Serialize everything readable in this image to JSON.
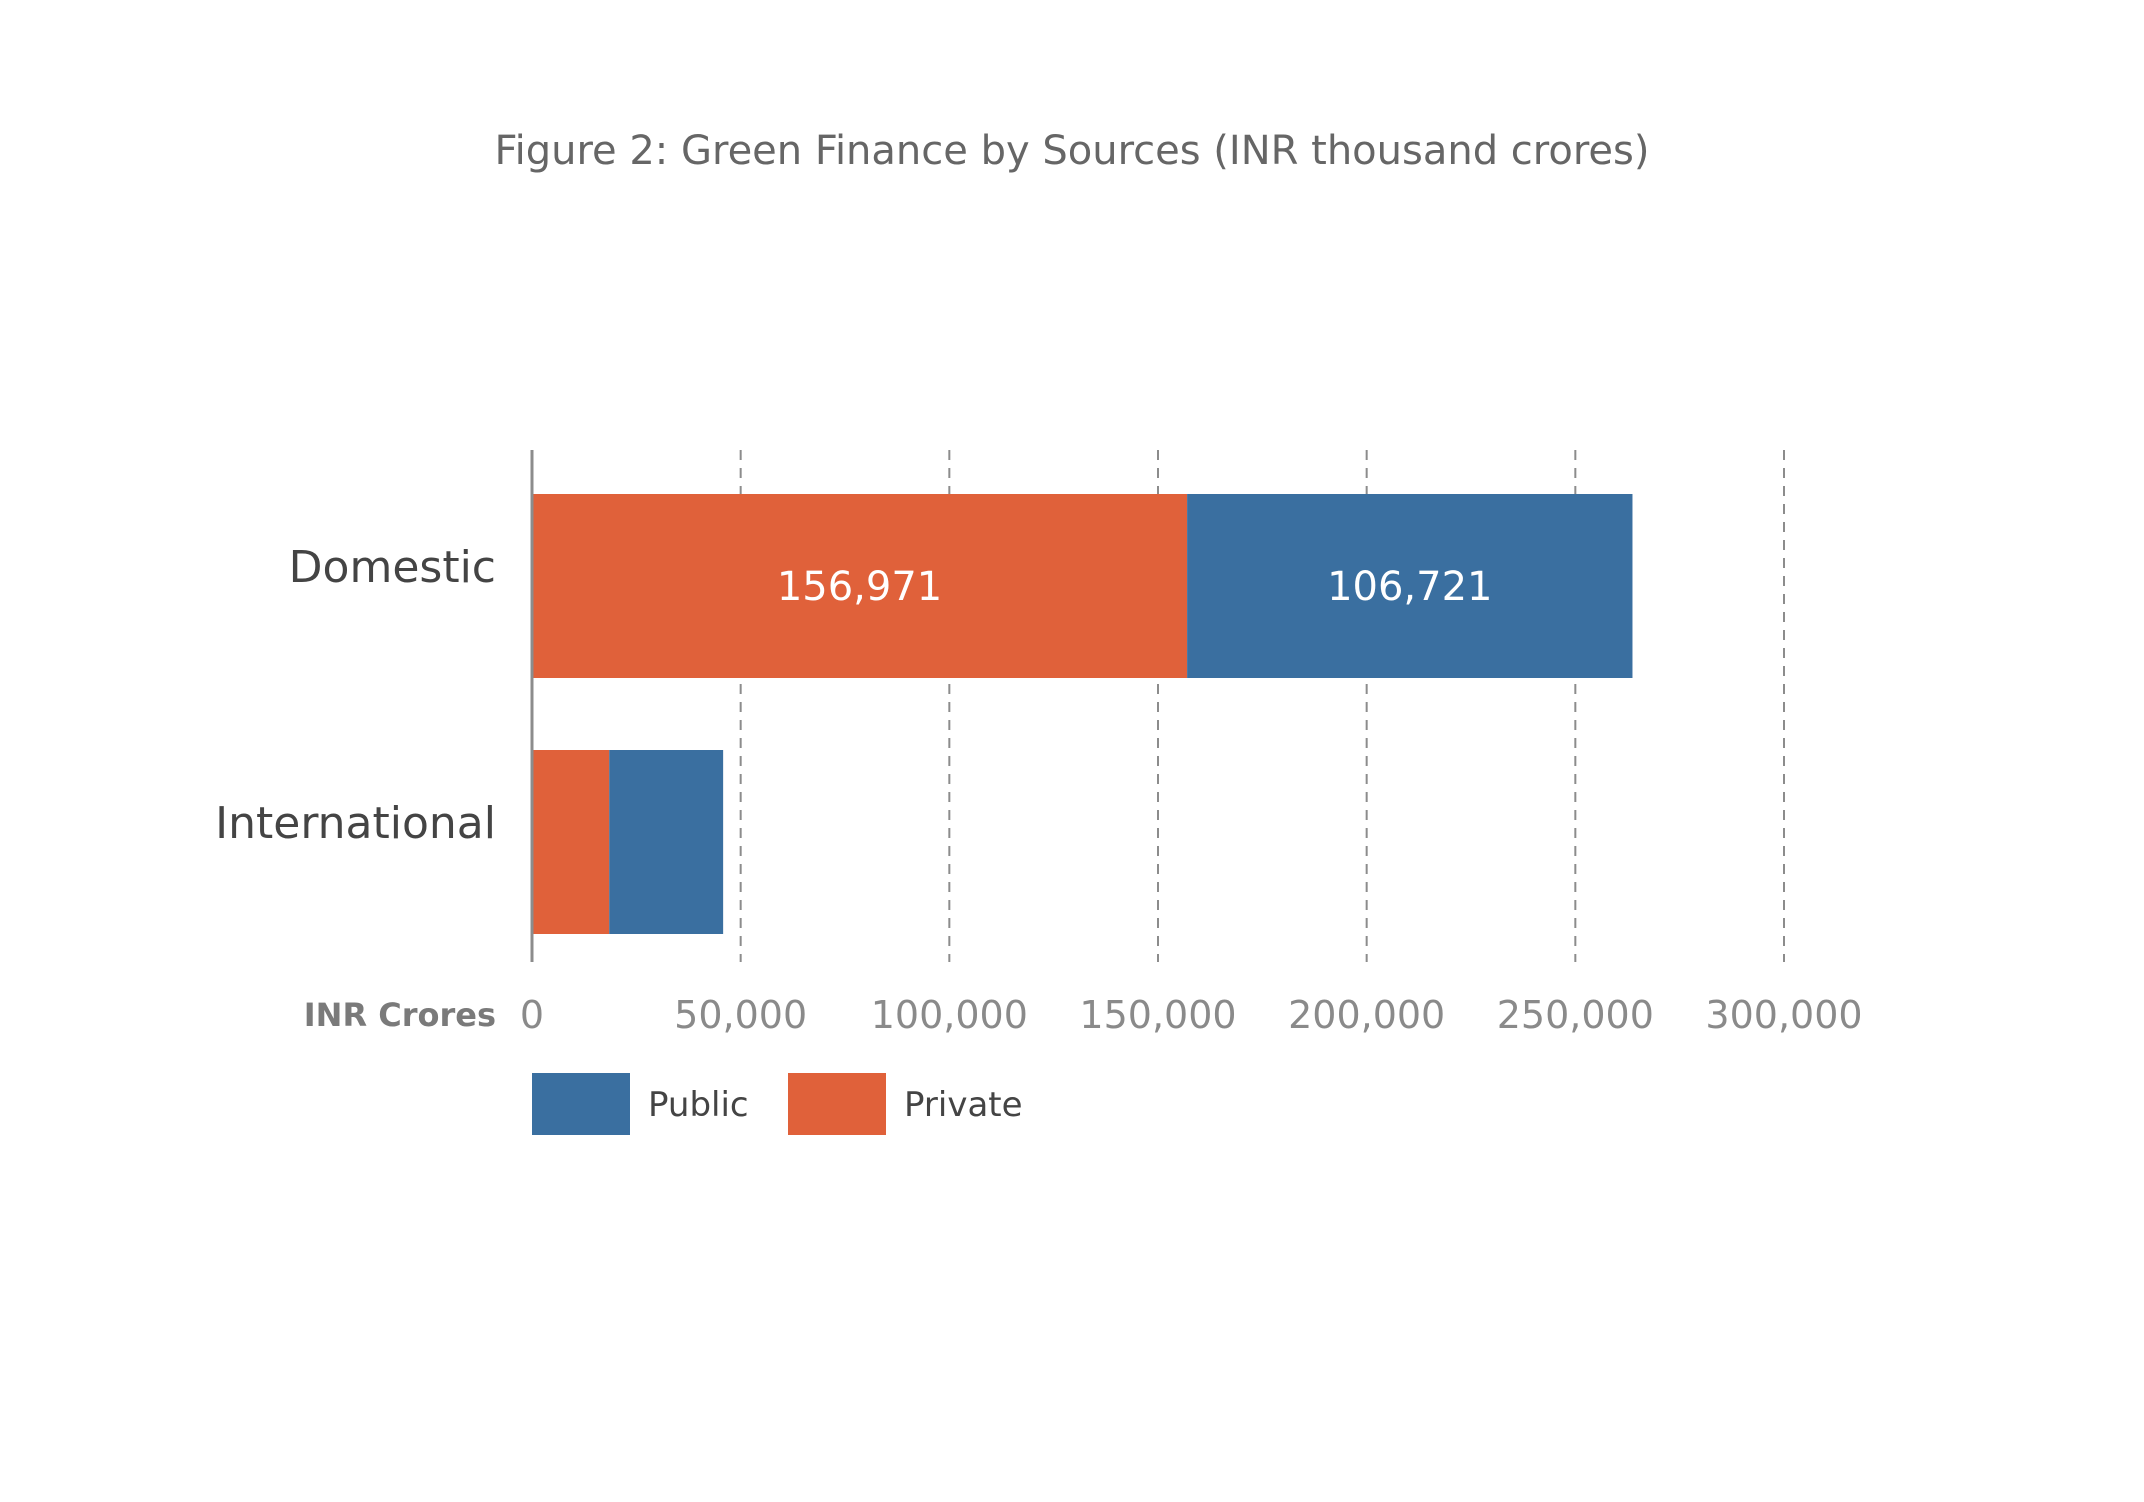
{
  "chart_data": {
    "type": "bar",
    "orientation": "horizontal",
    "stacked": true,
    "title": "Figure 2: Green Finance by Sources (INR thousand crores)",
    "xlabel": "INR Crores",
    "ylabel": "",
    "categories": [
      "Domestic",
      "International"
    ],
    "series": [
      {
        "name": "Private",
        "color": "#E0613A",
        "values": [
          156971,
          18500
        ],
        "data_labels": [
          "156,971",
          ""
        ]
      },
      {
        "name": "Public",
        "color": "#3A6FA0",
        "values": [
          106721,
          27300
        ],
        "data_labels": [
          "106,721",
          ""
        ]
      }
    ],
    "xlim": [
      0,
      300000
    ],
    "xticks": [
      0,
      50000,
      100000,
      150000,
      200000,
      250000,
      300000
    ],
    "xtick_labels": [
      "0",
      "50,000",
      "100,000",
      "150,000",
      "200,000",
      "250,000",
      "300,000"
    ],
    "grid": "vertical dashed",
    "legend": {
      "position": "bottom-left",
      "entries": [
        {
          "name": "Public",
          "color": "#3A6FA0"
        },
        {
          "name": "Private",
          "color": "#E0613A"
        }
      ]
    }
  }
}
